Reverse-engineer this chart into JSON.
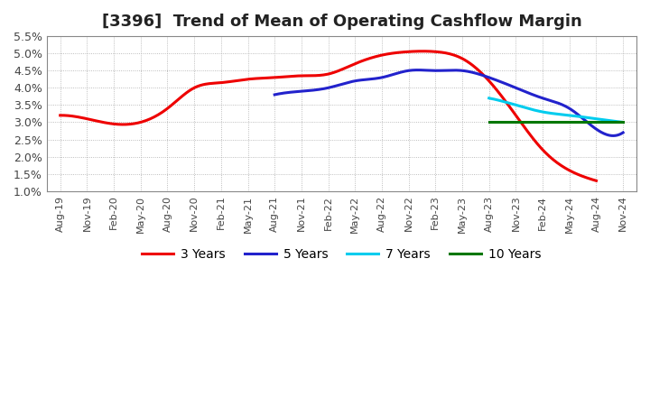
{
  "title": "[3396]  Trend of Mean of Operating Cashflow Margin",
  "title_fontsize": 13,
  "background_color": "#ffffff",
  "plot_background_color": "#ffffff",
  "grid_color": "#aaaaaa",
  "ylim": [
    0.01,
    0.055
  ],
  "yticks": [
    0.01,
    0.015,
    0.02,
    0.025,
    0.03,
    0.035,
    0.04,
    0.045,
    0.05,
    0.055
  ],
  "ytick_labels": [
    "1.0%",
    "1.5%",
    "2.0%",
    "2.5%",
    "3.0%",
    "3.5%",
    "4.0%",
    "4.5%",
    "5.0%",
    "5.5%"
  ],
  "xtick_labels": [
    "Aug-19",
    "Nov-19",
    "Feb-20",
    "May-20",
    "Aug-20",
    "Nov-20",
    "Feb-21",
    "May-21",
    "Aug-21",
    "Nov-21",
    "Feb-22",
    "May-22",
    "Aug-22",
    "Nov-22",
    "Feb-23",
    "May-23",
    "Aug-23",
    "Nov-23",
    "Feb-24",
    "May-24",
    "Aug-24",
    "Nov-24"
  ],
  "series": {
    "3 Years": {
      "color": "#ee0000",
      "x_indices": [
        0,
        1,
        2,
        3,
        4,
        5,
        6,
        7,
        8,
        9,
        10,
        11,
        12,
        13,
        14,
        15,
        16,
        17,
        18,
        19,
        20
      ],
      "values": [
        0.032,
        0.031,
        0.0295,
        0.03,
        0.034,
        0.04,
        0.0415,
        0.0425,
        0.043,
        0.0435,
        0.044,
        0.047,
        0.0495,
        0.0505,
        0.0505,
        0.0485,
        0.042,
        0.032,
        0.022,
        0.016,
        0.013
      ]
    },
    "5 Years": {
      "color": "#2222cc",
      "x_indices": [
        8,
        9,
        10,
        11,
        12,
        13,
        14,
        15,
        16,
        17,
        18,
        19,
        20,
        21
      ],
      "values": [
        0.038,
        0.039,
        0.04,
        0.042,
        0.043,
        0.045,
        0.045,
        0.045,
        0.043,
        0.04,
        0.037,
        0.034,
        0.028,
        0.027
      ]
    },
    "7 Years": {
      "color": "#00ccee",
      "x_indices": [
        16,
        17,
        18,
        19,
        20,
        21
      ],
      "values": [
        0.037,
        0.035,
        0.033,
        0.032,
        0.031,
        0.03
      ]
    },
    "10 Years": {
      "color": "#007700",
      "x_indices": [
        16,
        17,
        18,
        19,
        20,
        21
      ],
      "values": [
        0.03,
        0.03,
        0.03,
        0.03,
        0.03,
        0.03
      ]
    }
  },
  "legend_labels": [
    "3 Years",
    "5 Years",
    "7 Years",
    "10 Years"
  ],
  "legend_colors": [
    "#ee0000",
    "#2222cc",
    "#00ccee",
    "#007700"
  ]
}
